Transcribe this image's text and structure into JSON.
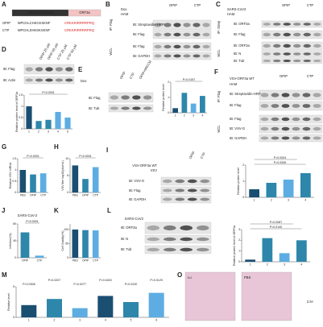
{
  "panels": [
    {
      "label": "A",
      "texts": [
        "ORF3a(120-126)",
        "ORF3a",
        "OPIP",
        "CTP",
        "MPCHLCHKCKSKNF",
        "MPCHLSHKSKSKNF",
        "CRKKRIRRRRPRQ",
        "CRKKRIRRRRPRQ"
      ]
    },
    {
      "label": "B",
      "texts": [
        "Dox",
        "HAM",
        "OPIP",
        "CTP",
        "IP: Flag",
        "IB: Streptavidin-HRP",
        "IB: Flag",
        "WCL",
        "IB: Flag",
        "IB: GAPDH"
      ]
    },
    {
      "label": "C",
      "texts": [
        "SARS-CoV2",
        "HAM",
        "OPIP",
        "CTP",
        "IP: Strep",
        "IB: ORF3a",
        "IB: Flag",
        "WCL",
        "IB: ORF3a",
        "IB: N",
        "IB: Tub"
      ]
    },
    {
      "label": "D",
      "texts": [
        "OPIP 25 μM",
        "OPIP 50 μM",
        "CTP 25 μM",
        "CTP 50 μM",
        "IB: Flag",
        "IB: Actin"
      ],
      "chart": {
        "type": "bar",
        "ylabel": "Relative protein level of ORF3a",
        "categories": [
          "1",
          "2",
          "3",
          "4",
          "5"
        ],
        "values": [
          1,
          0.35,
          0.4,
          0.75,
          0.5
        ],
        "colors": [
          "#1b4f72",
          "#2e86ab",
          "#2e86ab",
          "#5dade2",
          "#5dade2"
        ],
        "ylim": [
          0,
          1.5
        ],
        "yticks": [
          0,
          0.5,
          1,
          1.5
        ],
        "pvalues": [
          "P<0.0001"
        ]
      }
    },
    {
      "label": "E",
      "texts": [
        "Dox",
        "OPIP",
        "CTP",
        "OPIP+MG132",
        "IB: Flag",
        "IB: Tub"
      ],
      "chart": {
        "type": "bar",
        "ylabel": "Relative protein level",
        "categories": [
          "1",
          "2",
          "3",
          "4"
        ],
        "values": [
          0.3,
          1.3,
          0.6,
          1.1
        ],
        "colors": [
          "#1b4f72",
          "#2e86ab",
          "#5dade2",
          "#2e86ab"
        ],
        "ylim": [
          0,
          2
        ],
        "yticks": [
          0,
          1,
          2
        ],
        "pvalues": [
          "P=0.0167"
        ]
      }
    },
    {
      "label": "F",
      "texts": [
        "VSV-ORF3a WT",
        "OPIP",
        "CTP",
        "HAM",
        "IP: Flag",
        "IB: Streptavidin-HRP",
        "IB: Flag",
        "WCL",
        "IB: Flag",
        "IB: VSV-G",
        "IB: GAPDH"
      ]
    },
    {
      "label": "G",
      "texts": [],
      "chart": {
        "type": "bar",
        "ylabel": "Relative VSV mRNA",
        "categories": [
          "PBS",
          "OPIP",
          "CTP"
        ],
        "values": [
          1,
          0.8,
          0.85
        ],
        "colors": [
          "#1b4f72",
          "#2e86ab",
          "#5dade2"
        ],
        "ylim": [
          0,
          1.5
        ],
        "yticks": [
          0,
          0.5,
          1,
          1.5
        ],
        "pvalues": [
          "P<0.0001"
        ]
      }
    },
    {
      "label": "H",
      "texts": [],
      "chart": {
        "type": "bar",
        "ylabel": "VSV titer log10(pfu/mL)",
        "categories": [
          "PBS",
          "OPIP",
          "CTP"
        ],
        "values": [
          8,
          4,
          7.5
        ],
        "colors": [
          "#1b4f72",
          "#2e86ab",
          "#5dade2"
        ],
        "ylim": [
          0,
          10
        ],
        "yticks": [
          0,
          5,
          10
        ],
        "pvalues": [
          "P<0.0001"
        ]
      }
    },
    {
      "label": "I",
      "texts": [
        "VSV-ORF3a WT",
        "VSV",
        "OPIP",
        "CTP",
        "IB: VSV-G",
        "IB: Flag",
        "IB: GAPDH"
      ],
      "chart": {
        "type": "bar",
        "ylabel": "Relative protein level",
        "categories": [
          "1",
          "2",
          "3",
          "4"
        ],
        "values": [
          0.5,
          0.9,
          1.1,
          1.5
        ],
        "colors": [
          "#1b4f72",
          "#2e86ab",
          "#5dade2",
          "#2e86ab"
        ],
        "ylim": [
          0,
          2
        ],
        "yticks": [
          0,
          1,
          2
        ],
        "pvalues": [
          "P=0.0006",
          "P=0.0004"
        ]
      }
    },
    {
      "label": "J",
      "texts": [
        "SARS-CoV-2"
      ],
      "chart": {
        "type": "bar",
        "ylabel": "Infection(%)",
        "categories": [
          "OPIP",
          "CTP"
        ],
        "values": [
          60,
          5
        ],
        "colors": [
          "#2e86ab",
          "#5dade2"
        ],
        "ylim": [
          0,
          80
        ],
        "yticks": [
          0,
          40,
          80
        ],
        "pvalues": [
          "P<0.0001"
        ]
      }
    },
    {
      "label": "K",
      "texts": [],
      "chart": {
        "type": "bar",
        "ylabel": "Cell Viability(%)",
        "categories": [
          "PBS",
          "OPIP",
          "CTP"
        ],
        "values": [
          100,
          98,
          97
        ],
        "colors": [
          "#1b4f72",
          "#2e86ab",
          "#5dade2"
        ],
        "ylim": [
          0,
          120
        ],
        "yticks": [
          0,
          50,
          100
        ],
        "pvalues": []
      }
    },
    {
      "label": "L",
      "texts": [
        "SARS-CoV2",
        "IB: ORF3a",
        "IB: N",
        "IB: Tub"
      ],
      "chart": {
        "type": "bar",
        "ylabel": "Relative protein level of ORF3a",
        "categories": [
          "1",
          "2",
          "3",
          "4"
        ],
        "values": [
          0.2,
          2.2,
          0.8,
          2
        ],
        "colors": [
          "#1b4f72",
          "#2e86ab",
          "#5dade2",
          "#2e86ab"
        ],
        "ylim": [
          0,
          3
        ],
        "yticks": [
          0,
          1,
          2,
          3
        ],
        "pvalues": [
          "P=0.0140",
          "P=0.0087"
        ]
      }
    },
    {
      "label": "M",
      "texts": [],
      "chart": {
        "type": "bar",
        "ylabel": "Relative level",
        "categories": [
          "1",
          "2",
          "3",
          "4",
          "5",
          "6"
        ],
        "values": [
          2,
          3,
          1.5,
          3.5,
          2.5,
          4
        ],
        "colors": [
          "#1b4f72",
          "#2e86ab",
          "#5dade2",
          "#1b4f72",
          "#2e86ab",
          "#5dade2"
        ],
        "ylim": [
          0,
          5
        ],
        "yticks": [
          0,
          5
        ],
        "pvalues": [
          "P=0.0308",
          "P=0.0207",
          "P=0.0277",
          "P=0.0403",
          "P=0.0230",
          "P=0.0129"
        ]
      }
    },
    {
      "label": "O",
      "texts": [
        "Lu",
        "PBS",
        "2.5×"
      ]
    }
  ]
}
